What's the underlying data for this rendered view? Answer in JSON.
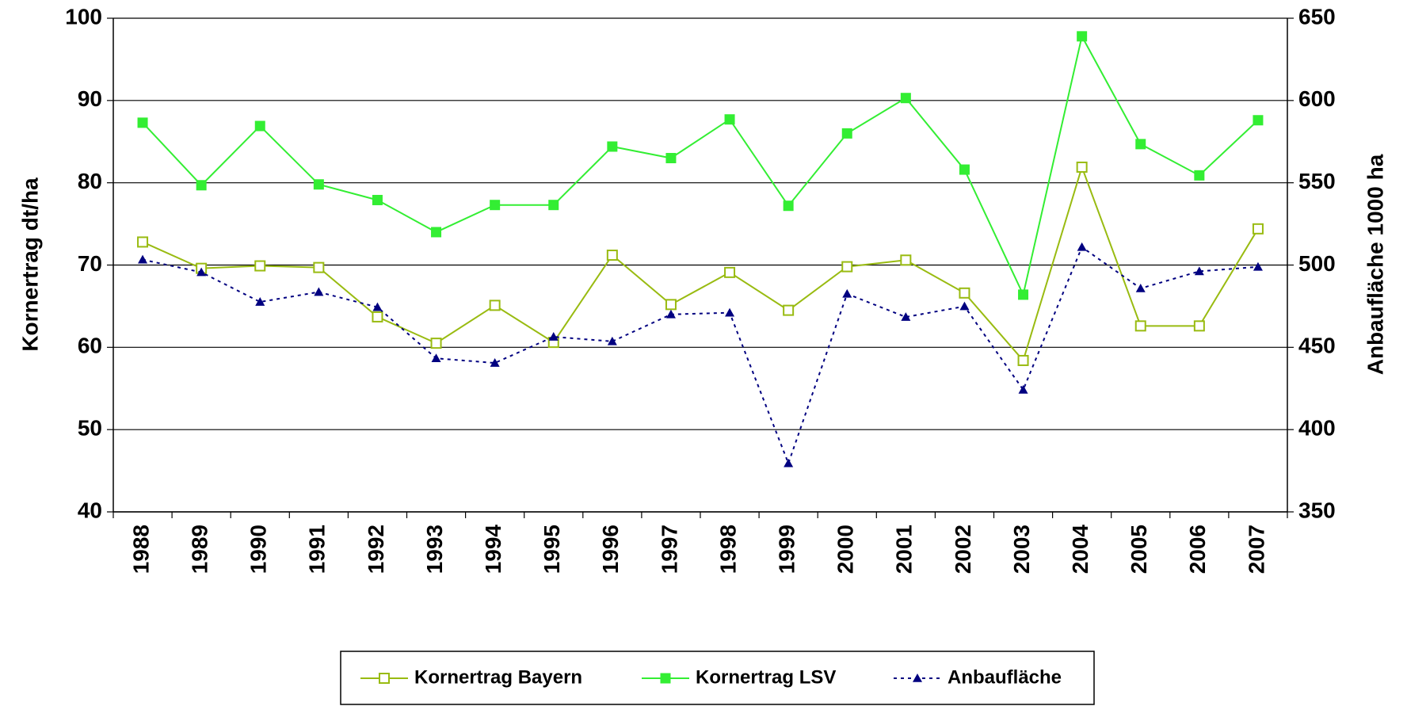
{
  "chart_data": {
    "type": "line",
    "ylabel": "Kornertrag  dt/ha",
    "y2label": "Anbaufläche 1000 ha",
    "categories": [
      "1988",
      "1989",
      "1990",
      "1991",
      "1992",
      "1993",
      "1994",
      "1995",
      "1996",
      "1997",
      "1998",
      "1999",
      "2000",
      "2001",
      "2002",
      "2003",
      "2004",
      "2005",
      "2006",
      "2007"
    ],
    "series": [
      {
        "name": "Kornertrag Bayern",
        "color": "#99bb11",
        "marker": "open-square",
        "dash": "solid",
        "values": [
          72.8,
          69.6,
          69.9,
          69.7,
          63.7,
          60.5,
          65.1,
          60.6,
          71.2,
          65.2,
          69.1,
          64.5,
          69.8,
          70.6,
          66.6,
          58.4,
          81.9,
          62.6,
          62.6,
          74.4
        ]
      },
      {
        "name": "Kornertrag LSV",
        "color": "#33ee33",
        "marker": "square",
        "dash": "solid",
        "values": [
          87.3,
          79.7,
          86.9,
          79.8,
          77.9,
          74.0,
          77.3,
          77.3,
          84.4,
          83.0,
          87.7,
          77.2,
          86.0,
          90.3,
          81.6,
          66.4,
          97.8,
          84.7,
          80.9,
          87.6
        ]
      },
      {
        "name": "Anbaufläche",
        "color": "#000080",
        "marker": "triangle",
        "dash": "dotted",
        "axis": "y2",
        "values": [
          503.3,
          495.6,
          477.6,
          483.6,
          474.4,
          443.3,
          440.5,
          456.4,
          453.6,
          470.0,
          471.0,
          379.5,
          482.5,
          468.4,
          474.9,
          424.2,
          510.9,
          485.8,
          496.2,
          498.9
        ]
      }
    ],
    "ylim": [
      40,
      100
    ],
    "yticks": [
      40,
      50,
      60,
      70,
      80,
      90,
      100
    ],
    "y2lim": [
      350,
      650
    ],
    "y2ticks": [
      350,
      400,
      450,
      500,
      550,
      600,
      650
    ],
    "grid": true,
    "legend": "bottom"
  }
}
